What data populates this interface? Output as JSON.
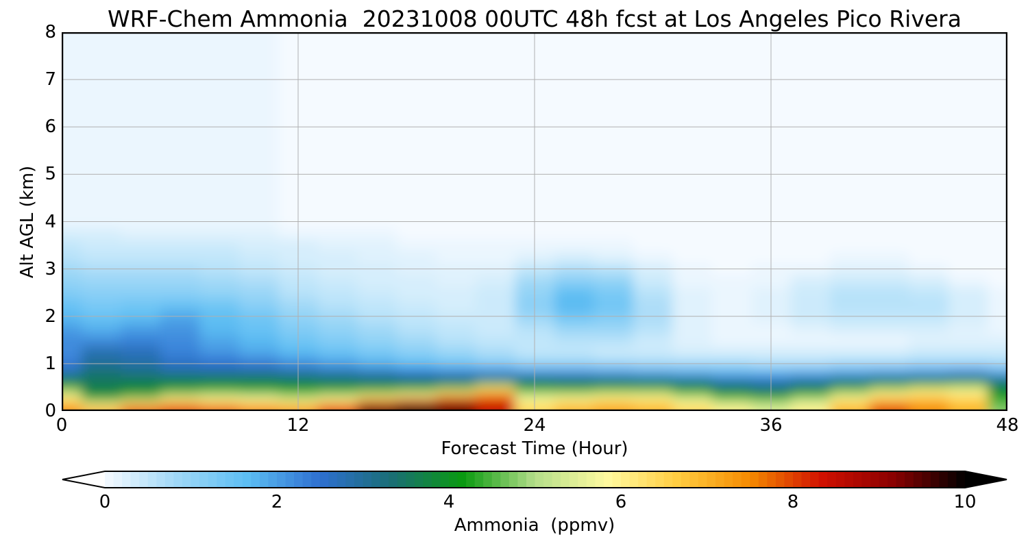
{
  "chart_data": {
    "type": "heatmap",
    "title": "WRF-Chem Ammonia  20231008 00UTC 48h fcst at Los Angeles Pico Rivera",
    "xlabel": "Forecast Time (Hour)",
    "ylabel": "Alt AGL (km)",
    "xlim": [
      0,
      48
    ],
    "ylim": [
      0,
      8
    ],
    "xticks": [
      "0",
      "12",
      "24",
      "36",
      "48"
    ],
    "yticks": [
      "0",
      "1",
      "2",
      "3",
      "4",
      "5",
      "6",
      "7",
      "8"
    ],
    "grid": true,
    "colorbar": {
      "label": "Ammonia  (ppmv)",
      "range": [
        0,
        10
      ],
      "ticks": [
        "0",
        "2",
        "4",
        "6",
        "8",
        "10"
      ],
      "extend": "both",
      "palette": [
        "#f5faff",
        "#9fd8f7",
        "#5cbdf3",
        "#2e6fd0",
        "#1a6e75",
        "#0a9a10",
        "#b4de8a",
        "#fffaa0",
        "#ffcc40",
        "#f58a00",
        "#d01000",
        "#8a0000",
        "#000000"
      ]
    },
    "x": [
      0,
      2,
      4,
      6,
      8,
      10,
      12,
      14,
      16,
      18,
      20,
      22,
      24,
      26,
      28,
      30,
      32,
      34,
      36,
      38,
      40,
      42,
      44,
      46,
      48
    ],
    "y_km": [
      0.05,
      0.15,
      0.25,
      0.35,
      0.45,
      0.55,
      0.65,
      0.8,
      1.0,
      1.25,
      1.5,
      1.75,
      2.0,
      2.25,
      2.5,
      2.75,
      3.0,
      3.25,
      3.5,
      3.75,
      4.0
    ],
    "z": [
      [
        7.5,
        7.0,
        7.8,
        8.0,
        7.8,
        7.5,
        7.3,
        8.0,
        9.5,
        10.0,
        9.5,
        8.5,
        6.5,
        7.0,
        7.2,
        7.0,
        6.5,
        6.0,
        5.5,
        6.0,
        7.0,
        8.0,
        7.5,
        7.0,
        4.8
      ],
      [
        6.8,
        5.8,
        6.8,
        7.3,
        7.0,
        6.8,
        6.5,
        7.2,
        8.6,
        9.2,
        9.0,
        8.3,
        6.2,
        6.6,
        6.8,
        6.6,
        6.0,
        5.5,
        5.2,
        5.6,
        6.6,
        7.5,
        7.2,
        6.8,
        4.6
      ],
      [
        6.3,
        4.5,
        5.2,
        6.2,
        6.0,
        5.8,
        5.5,
        6.0,
        7.0,
        7.6,
        8.2,
        8.0,
        5.8,
        6.0,
        6.3,
        6.2,
        5.6,
        4.8,
        4.6,
        5.2,
        6.1,
        6.8,
        6.9,
        6.5,
        4.4
      ],
      [
        5.6,
        3.9,
        4.2,
        5.0,
        5.2,
        5.0,
        4.8,
        5.0,
        5.5,
        5.8,
        6.8,
        7.5,
        5.2,
        5.3,
        5.6,
        5.6,
        4.8,
        4.2,
        4.0,
        4.5,
        5.4,
        6.1,
        6.4,
        6.2,
        4.1
      ],
      [
        4.8,
        3.7,
        3.9,
        4.2,
        4.4,
        4.3,
        4.2,
        4.3,
        4.4,
        4.6,
        5.2,
        6.6,
        4.5,
        4.4,
        4.6,
        4.6,
        4.2,
        3.7,
        3.4,
        3.9,
        4.6,
        5.3,
        5.9,
        5.8,
        3.9
      ],
      [
        4.0,
        3.6,
        3.7,
        3.8,
        3.9,
        3.9,
        3.9,
        3.8,
        3.8,
        3.8,
        4.0,
        5.0,
        3.9,
        3.8,
        3.9,
        3.9,
        3.6,
        3.2,
        3.0,
        3.3,
        3.8,
        4.3,
        4.6,
        4.8,
        3.6
      ],
      [
        3.7,
        3.5,
        3.6,
        3.7,
        3.7,
        3.7,
        3.6,
        3.5,
        3.4,
        3.4,
        3.4,
        3.6,
        3.4,
        3.3,
        3.3,
        3.2,
        3.0,
        2.7,
        2.6,
        2.8,
        3.1,
        3.4,
        3.6,
        3.8,
        3.3
      ],
      [
        2.8,
        3.4,
        3.2,
        3.0,
        3.0,
        3.0,
        2.9,
        2.8,
        2.7,
        2.5,
        2.4,
        2.4,
        2.2,
        2.2,
        2.1,
        2.0,
        1.9,
        1.8,
        1.8,
        1.9,
        2.0,
        2.1,
        2.2,
        2.4,
        2.0
      ],
      [
        2.4,
        3.0,
        2.9,
        2.6,
        2.5,
        2.4,
        2.2,
        2.0,
        1.8,
        1.6,
        1.4,
        1.2,
        1.0,
        1.0,
        0.9,
        0.8,
        0.8,
        0.8,
        0.7,
        0.7,
        0.8,
        0.8,
        0.9,
        0.9,
        0.8
      ],
      [
        2.2,
        2.8,
        2.7,
        2.3,
        2.1,
        1.9,
        1.7,
        1.5,
        1.3,
        1.1,
        0.9,
        0.7,
        0.5,
        0.5,
        0.4,
        0.4,
        0.3,
        0.3,
        0.3,
        0.3,
        0.3,
        0.3,
        0.4,
        0.4,
        0.4
      ],
      [
        2.2,
        2.2,
        2.3,
        2.2,
        1.9,
        1.7,
        1.4,
        1.2,
        1.0,
        0.8,
        0.6,
        0.5,
        0.5,
        0.6,
        0.6,
        0.4,
        0.2,
        0.1,
        0.1,
        0.1,
        0.1,
        0.1,
        0.2,
        0.2,
        0.2
      ],
      [
        2.0,
        1.8,
        2.0,
        2.1,
        1.7,
        1.5,
        1.2,
        1.0,
        0.8,
        0.6,
        0.5,
        0.4,
        0.6,
        0.9,
        0.9,
        0.6,
        0.2,
        0.1,
        0.1,
        0.2,
        0.3,
        0.3,
        0.3,
        0.2,
        0.1
      ],
      [
        1.7,
        1.5,
        1.6,
        1.9,
        1.6,
        1.4,
        1.0,
        0.8,
        0.6,
        0.5,
        0.4,
        0.4,
        0.9,
        1.4,
        1.2,
        0.7,
        0.2,
        0.1,
        0.2,
        0.4,
        0.5,
        0.5,
        0.5,
        0.3,
        0.1
      ],
      [
        1.5,
        1.3,
        1.4,
        1.5,
        1.4,
        1.1,
        0.8,
        0.6,
        0.5,
        0.4,
        0.3,
        0.4,
        1.1,
        1.7,
        1.4,
        0.7,
        0.2,
        0.1,
        0.2,
        0.4,
        0.6,
        0.6,
        0.6,
        0.3,
        0.1
      ],
      [
        1.2,
        1.1,
        1.1,
        1.1,
        1.0,
        0.9,
        0.6,
        0.5,
        0.4,
        0.3,
        0.3,
        0.4,
        1.0,
        1.6,
        1.3,
        0.6,
        0.2,
        0.1,
        0.2,
        0.4,
        0.6,
        0.6,
        0.5,
        0.3,
        0.1
      ],
      [
        1.0,
        0.9,
        0.9,
        0.9,
        0.8,
        0.7,
        0.5,
        0.4,
        0.3,
        0.3,
        0.2,
        0.3,
        0.8,
        1.1,
        1.0,
        0.4,
        0.1,
        0.1,
        0.1,
        0.3,
        0.4,
        0.4,
        0.3,
        0.1,
        0.0
      ],
      [
        0.8,
        0.7,
        0.7,
        0.7,
        0.6,
        0.5,
        0.4,
        0.3,
        0.3,
        0.2,
        0.2,
        0.2,
        0.5,
        0.7,
        0.6,
        0.3,
        0.1,
        0.0,
        0.1,
        0.1,
        0.2,
        0.2,
        0.1,
        0.0,
        0.0
      ],
      [
        0.6,
        0.5,
        0.5,
        0.5,
        0.5,
        0.4,
        0.3,
        0.3,
        0.2,
        0.2,
        0.1,
        0.1,
        0.2,
        0.3,
        0.2,
        0.1,
        0.0,
        0.0,
        0.0,
        0.0,
        0.1,
        0.1,
        0.0,
        0.0,
        0.0
      ],
      [
        0.5,
        0.4,
        0.4,
        0.4,
        0.4,
        0.3,
        0.3,
        0.2,
        0.2,
        0.1,
        0.1,
        0.1,
        0.1,
        0.1,
        0.1,
        0.0,
        0.0,
        0.0,
        0.0,
        0.0,
        0.0,
        0.0,
        0.0,
        0.0,
        0.0
      ],
      [
        0.3,
        0.3,
        0.2,
        0.2,
        0.2,
        0.2,
        0.1,
        0.1,
        0.1,
        0.0,
        0.0,
        0.0,
        0.0,
        0.0,
        0.0,
        0.0,
        0.0,
        0.0,
        0.0,
        0.0,
        0.0,
        0.0,
        0.0,
        0.0,
        0.0
      ],
      [
        0.1,
        0.1,
        0.1,
        0.1,
        0.1,
        0.1,
        0.0,
        0.0,
        0.0,
        0.0,
        0.0,
        0.0,
        0.0,
        0.0,
        0.0,
        0.0,
        0.0,
        0.0,
        0.0,
        0.0,
        0.0,
        0.0,
        0.0,
        0.0,
        0.0
      ]
    ]
  }
}
